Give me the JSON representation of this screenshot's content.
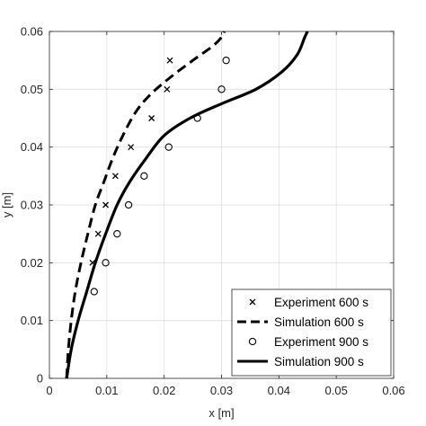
{
  "chart_data": {
    "type": "line",
    "title": "",
    "xlabel": "x [m]",
    "ylabel": "y [m]",
    "xlim": [
      0,
      0.06
    ],
    "ylim": [
      0,
      0.06
    ],
    "xticks": [
      0,
      0.01,
      0.02,
      0.03,
      0.04,
      0.05,
      0.06
    ],
    "yticks": [
      0,
      0.01,
      0.02,
      0.03,
      0.04,
      0.05,
      0.06
    ],
    "xtick_labels": [
      "0",
      "0.01",
      "0.02",
      "0.03",
      "0.04",
      "0.05",
      "0.06"
    ],
    "ytick_labels": [
      "0",
      "0.01",
      "0.02",
      "0.03",
      "0.04",
      "0.05",
      "0.06"
    ],
    "grid": true,
    "legend_position": "bottom-right",
    "series": [
      {
        "name": "Experiment 600 s",
        "kind": "scatter",
        "marker": "x",
        "color": "#000000",
        "x": [
          0.0075,
          0.0085,
          0.0098,
          0.0115,
          0.0142,
          0.0178,
          0.0205,
          0.021
        ],
        "y": [
          0.02,
          0.025,
          0.03,
          0.035,
          0.04,
          0.045,
          0.05,
          0.055
        ]
      },
      {
        "name": "Simulation 600 s",
        "kind": "line",
        "dash": "dashed",
        "color": "#000000",
        "x": [
          0.003,
          0.0033,
          0.0038,
          0.0045,
          0.0055,
          0.0067,
          0.008,
          0.0095,
          0.011,
          0.0128,
          0.015,
          0.0175,
          0.021,
          0.025,
          0.0285,
          0.03,
          0.0305
        ],
        "y": [
          0.0,
          0.005,
          0.01,
          0.015,
          0.02,
          0.025,
          0.03,
          0.034,
          0.038,
          0.042,
          0.046,
          0.049,
          0.052,
          0.055,
          0.0575,
          0.059,
          0.06
        ]
      },
      {
        "name": "Experiment 900 s",
        "kind": "scatter",
        "marker": "circle",
        "color": "#000000",
        "x": [
          0.0078,
          0.0098,
          0.0118,
          0.0138,
          0.0165,
          0.0208,
          0.0258,
          0.03,
          0.0308
        ],
        "y": [
          0.015,
          0.02,
          0.025,
          0.03,
          0.035,
          0.04,
          0.045,
          0.05,
          0.055
        ]
      },
      {
        "name": "Simulation 900 s",
        "kind": "line",
        "dash": "solid",
        "color": "#000000",
        "x": [
          0.003,
          0.0038,
          0.005,
          0.0065,
          0.008,
          0.0098,
          0.0118,
          0.014,
          0.0168,
          0.02,
          0.0245,
          0.03,
          0.036,
          0.0405,
          0.0432,
          0.0445,
          0.045
        ],
        "y": [
          0.0,
          0.005,
          0.01,
          0.015,
          0.02,
          0.025,
          0.03,
          0.034,
          0.038,
          0.042,
          0.045,
          0.0475,
          0.05,
          0.053,
          0.056,
          0.059,
          0.06
        ]
      }
    ]
  }
}
